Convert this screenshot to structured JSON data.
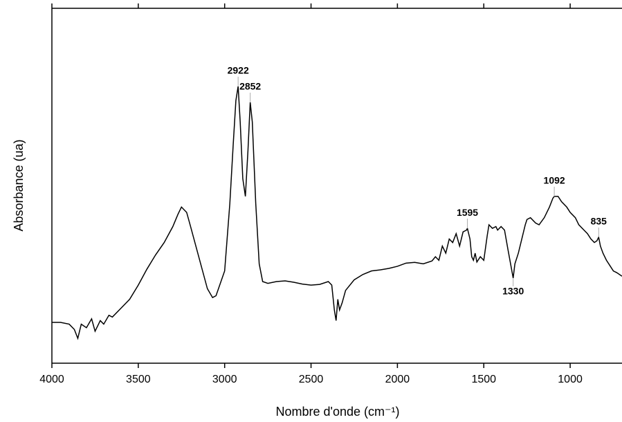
{
  "chart_data": {
    "type": "line",
    "xlabel": "Nombre d'onde (cm⁻¹)",
    "ylabel": "Absorbance (ua)",
    "xlim": [
      4000,
      700
    ],
    "xticks": [
      4000,
      3500,
      3000,
      2500,
      2000,
      1500,
      1000
    ],
    "ylim": [
      0,
      100
    ],
    "color": "#000000",
    "x": [
      4000,
      3950,
      3900,
      3870,
      3850,
      3830,
      3800,
      3770,
      3750,
      3720,
      3700,
      3670,
      3650,
      3600,
      3550,
      3500,
      3450,
      3400,
      3350,
      3300,
      3270,
      3250,
      3220,
      3200,
      3150,
      3100,
      3070,
      3050,
      3000,
      2970,
      2950,
      2935,
      2922,
      2910,
      2895,
      2880,
      2865,
      2852,
      2840,
      2820,
      2800,
      2780,
      2750,
      2700,
      2650,
      2600,
      2550,
      2500,
      2450,
      2400,
      2380,
      2365,
      2355,
      2345,
      2335,
      2320,
      2300,
      2250,
      2200,
      2150,
      2100,
      2050,
      2000,
      1950,
      1900,
      1850,
      1800,
      1780,
      1760,
      1740,
      1720,
      1700,
      1680,
      1660,
      1640,
      1620,
      1600,
      1595,
      1580,
      1570,
      1560,
      1550,
      1540,
      1520,
      1500,
      1480,
      1470,
      1450,
      1430,
      1420,
      1400,
      1380,
      1360,
      1345,
      1330,
      1320,
      1300,
      1280,
      1260,
      1250,
      1230,
      1200,
      1180,
      1150,
      1120,
      1100,
      1092,
      1070,
      1050,
      1020,
      1000,
      970,
      950,
      920,
      900,
      880,
      860,
      845,
      835,
      825,
      810,
      790,
      770,
      750,
      730,
      700
    ],
    "values": [
      11.5,
      11.5,
      11.0,
      9.5,
      7.0,
      11.0,
      10.0,
      12.5,
      9.0,
      12.0,
      11.0,
      13.5,
      13.0,
      15.5,
      18,
      22,
      26.5,
      30.5,
      34,
      38.5,
      42,
      44,
      42.5,
      39,
      30,
      21,
      18.5,
      19,
      26,
      45,
      62,
      74,
      78,
      68,
      52,
      47,
      60,
      73.5,
      68,
      45,
      28,
      23,
      22.5,
      23,
      23.2,
      22.8,
      22.3,
      22,
      22.2,
      23,
      22,
      15,
      12,
      18,
      15,
      17,
      20.5,
      23.5,
      25,
      26,
      26.3,
      26.7,
      27.3,
      28.2,
      28.4,
      28,
      28.8,
      30,
      29,
      33,
      31,
      35,
      34,
      36.5,
      33,
      37,
      37.5,
      38,
      35,
      30,
      29,
      31,
      28.5,
      30,
      29,
      36,
      39,
      38,
      38.5,
      37.5,
      38.5,
      37.5,
      32,
      28,
      24,
      28,
      31,
      35,
      39,
      40.5,
      41,
      39.5,
      39,
      41,
      44,
      46.5,
      47,
      47,
      45.5,
      44,
      42.5,
      41,
      39,
      37.5,
      36.5,
      35,
      34,
      34.5,
      35.5,
      33,
      31,
      29,
      27.5,
      26,
      25.5,
      24.5
    ],
    "annotations": [
      {
        "x": 2922,
        "y": 78,
        "position": "above"
      },
      {
        "x": 2852,
        "y": 73.5,
        "position": "above"
      },
      {
        "x": 1595,
        "y": 38,
        "position": "above"
      },
      {
        "x": 1330,
        "y": 24,
        "position": "below"
      },
      {
        "x": 1092,
        "y": 47,
        "position": "above"
      },
      {
        "x": 835,
        "y": 35.5,
        "position": "above"
      }
    ]
  }
}
